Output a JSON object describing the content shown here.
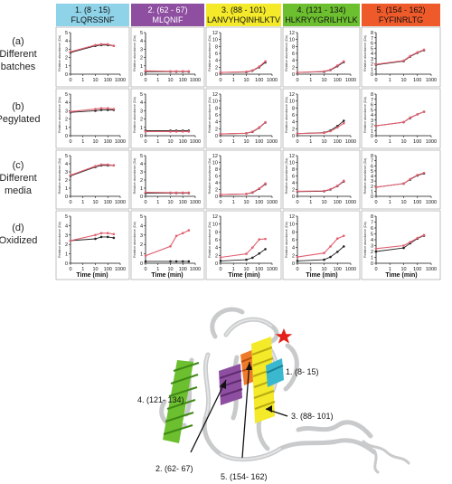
{
  "columns": [
    {
      "title": "1. (8 - 15)",
      "seq": "FLQRSSNF",
      "color": "#8fd3e8"
    },
    {
      "title": "2. (62 - 67)",
      "seq": "MLQNIF",
      "color": "#8e4fa1"
    },
    {
      "title": "3. (88 - 101)",
      "seq": "LANVYHQINHLKTV",
      "color": "#f4ea2a"
    },
    {
      "title": "4. (121 - 134)",
      "seq": "HLKRYYGRILHYLK",
      "color": "#6cbf2f"
    },
    {
      "title": "5. (154 - 162)",
      "seq": "FYFINRLTG",
      "color": "#ef5a2a"
    }
  ],
  "rows": [
    {
      "letter": "(a)",
      "lines": [
        "Different",
        "batches"
      ]
    },
    {
      "letter": "(b)",
      "lines": [
        "Pegylated"
      ]
    },
    {
      "letter": "(c)",
      "lines": [
        "Different",
        "media"
      ]
    },
    {
      "letter": "(d)",
      "lines": [
        "Oxidized"
      ]
    }
  ],
  "ylabel": "Relative abundance (Da)",
  "xlabel": "Time (min)",
  "structure_labels": [
    "1. (8- 15)",
    "2. (62- 67)",
    "3. (88- 101)",
    "4. (121- 134)",
    "5. (154- 162)"
  ],
  "series_colors": {
    "black": "#222222",
    "red": "#e06070"
  },
  "chart_data": [
    {
      "type": "line",
      "panel": "a1",
      "x_scale": "log",
      "x_ticks": [
        0,
        1,
        10,
        100,
        1000
      ],
      "ylim": [
        0,
        5
      ],
      "y_ticks": [
        0,
        1,
        2,
        3,
        4,
        5
      ],
      "x": [
        0,
        10,
        30,
        100,
        300
      ],
      "series": [
        {
          "color": "black",
          "values": [
            2.6,
            3.4,
            3.5,
            3.5,
            3.4
          ]
        },
        {
          "color": "red",
          "values": [
            2.7,
            3.5,
            3.6,
            3.6,
            3.4
          ]
        }
      ]
    },
    {
      "type": "line",
      "panel": "a2",
      "x_scale": "log",
      "x_ticks": [
        0,
        1,
        10,
        100,
        1000
      ],
      "ylim": [
        0,
        5
      ],
      "y_ticks": [
        0,
        1,
        2,
        3,
        4,
        5
      ],
      "x": [
        0,
        10,
        30,
        100,
        300
      ],
      "series": [
        {
          "color": "black",
          "values": [
            0.3,
            0.3,
            0.3,
            0.3,
            0.3
          ]
        },
        {
          "color": "red",
          "values": [
            0.4,
            0.35,
            0.35,
            0.35,
            0.35
          ]
        }
      ]
    },
    {
      "type": "line",
      "panel": "a3",
      "x_scale": "log",
      "x_ticks": [
        0,
        1,
        10,
        100,
        1000
      ],
      "ylim": [
        0,
        12
      ],
      "y_ticks": [
        0,
        2,
        4,
        6,
        8,
        10,
        12
      ],
      "x": [
        0,
        10,
        30,
        100,
        300
      ],
      "series": [
        {
          "color": "black",
          "values": [
            0.5,
            0.6,
            1.0,
            2.0,
            3.4
          ]
        },
        {
          "color": "red",
          "values": [
            0.5,
            0.7,
            1.1,
            2.2,
            3.7
          ]
        }
      ]
    },
    {
      "type": "line",
      "panel": "a4",
      "x_scale": "log",
      "x_ticks": [
        0,
        1,
        10,
        100,
        1000
      ],
      "ylim": [
        0,
        12
      ],
      "y_ticks": [
        0,
        2,
        4,
        6,
        8,
        10,
        12
      ],
      "x": [
        0,
        10,
        30,
        100,
        300
      ],
      "series": [
        {
          "color": "black",
          "values": [
            0.5,
            0.7,
            1.2,
            2.3,
            3.5
          ]
        },
        {
          "color": "red",
          "values": [
            0.5,
            0.8,
            1.3,
            2.5,
            3.7
          ]
        }
      ]
    },
    {
      "type": "line",
      "panel": "a5",
      "x_scale": "log",
      "x_ticks": [
        0,
        1,
        10,
        100,
        1000
      ],
      "ylim": [
        0,
        8
      ],
      "y_ticks": [
        0,
        1,
        2,
        3,
        4,
        5,
        6,
        7,
        8
      ],
      "x": [
        0,
        10,
        30,
        100,
        300
      ],
      "series": [
        {
          "color": "black",
          "values": [
            1.8,
            2.5,
            3.4,
            4.1,
            4.6
          ]
        },
        {
          "color": "red",
          "values": [
            1.9,
            2.6,
            3.5,
            4.2,
            4.7
          ]
        }
      ]
    },
    {
      "type": "line",
      "panel": "b1",
      "x_scale": "log",
      "x_ticks": [
        0,
        1,
        10,
        100,
        1000
      ],
      "ylim": [
        0,
        5
      ],
      "y_ticks": [
        0,
        1,
        2,
        3,
        4,
        5
      ],
      "x": [
        0,
        10,
        30,
        100,
        300
      ],
      "series": [
        {
          "color": "black",
          "values": [
            2.8,
            3.0,
            3.1,
            3.1,
            3.1
          ]
        },
        {
          "color": "red",
          "values": [
            2.9,
            3.2,
            3.3,
            3.3,
            3.2
          ]
        }
      ]
    },
    {
      "type": "line",
      "panel": "b2",
      "x_scale": "log",
      "x_ticks": [
        0,
        1,
        10,
        100,
        1000
      ],
      "ylim": [
        0,
        5
      ],
      "y_ticks": [
        0,
        1,
        2,
        3,
        4,
        5
      ],
      "x": [
        0,
        10,
        30,
        100,
        300
      ],
      "series": [
        {
          "color": "black",
          "values": [
            0.6,
            0.6,
            0.6,
            0.6,
            0.6
          ]
        },
        {
          "color": "red",
          "values": [
            0.5,
            0.5,
            0.5,
            0.5,
            0.5
          ]
        }
      ]
    },
    {
      "type": "line",
      "panel": "b3",
      "x_scale": "log",
      "x_ticks": [
        0,
        1,
        10,
        100,
        1000
      ],
      "ylim": [
        0,
        12
      ],
      "y_ticks": [
        0,
        2,
        4,
        6,
        8,
        10,
        12
      ],
      "x": [
        0,
        10,
        30,
        100,
        300
      ],
      "series": [
        {
          "color": "black",
          "values": [
            0.5,
            0.7,
            1.1,
            2.3,
            3.8
          ]
        },
        {
          "color": "red",
          "values": [
            0.5,
            0.7,
            1.2,
            2.4,
            3.9
          ]
        }
      ]
    },
    {
      "type": "line",
      "panel": "b4",
      "x_scale": "log",
      "x_ticks": [
        0,
        1,
        10,
        100,
        1000
      ],
      "ylim": [
        0,
        12
      ],
      "y_ticks": [
        0,
        2,
        4,
        6,
        8,
        10,
        12
      ],
      "x": [
        0,
        10,
        30,
        100,
        300
      ],
      "series": [
        {
          "color": "black",
          "values": [
            0.6,
            0.9,
            1.5,
            2.8,
            4.3
          ]
        },
        {
          "color": "red",
          "values": [
            0.6,
            0.8,
            1.3,
            2.4,
            3.6
          ]
        }
      ]
    },
    {
      "type": "line",
      "panel": "b5",
      "x_scale": "log",
      "x_ticks": [
        0,
        1,
        10,
        100,
        1000
      ],
      "ylim": [
        0,
        8
      ],
      "y_ticks": [
        0,
        1,
        2,
        3,
        4,
        5,
        6,
        7,
        8
      ],
      "x": [
        0,
        10,
        30,
        100,
        300
      ],
      "series": [
        {
          "color": "black",
          "values": [
            1.9,
            2.6,
            3.4,
            4.1,
            4.6
          ]
        },
        {
          "color": "red",
          "values": [
            1.9,
            2.6,
            3.5,
            4.1,
            4.6
          ]
        }
      ]
    },
    {
      "type": "line",
      "panel": "c1",
      "x_scale": "log",
      "x_ticks": [
        0,
        1,
        10,
        100,
        1000
      ],
      "ylim": [
        0,
        5
      ],
      "y_ticks": [
        0,
        1,
        2,
        3,
        4,
        5
      ],
      "x": [
        0,
        10,
        30,
        100,
        300
      ],
      "series": [
        {
          "color": "black",
          "values": [
            2.5,
            3.6,
            3.8,
            3.8,
            3.8
          ]
        },
        {
          "color": "red",
          "values": [
            2.6,
            3.7,
            3.9,
            3.9,
            3.8
          ]
        }
      ]
    },
    {
      "type": "line",
      "panel": "c2",
      "x_scale": "log",
      "x_ticks": [
        0,
        1,
        10,
        100,
        1000
      ],
      "ylim": [
        0,
        5
      ],
      "y_ticks": [
        0,
        1,
        2,
        3,
        4,
        5
      ],
      "x": [
        0,
        10,
        30,
        100,
        300
      ],
      "series": [
        {
          "color": "black",
          "values": [
            0.4,
            0.4,
            0.4,
            0.4,
            0.4
          ]
        },
        {
          "color": "red",
          "values": [
            0.5,
            0.45,
            0.45,
            0.45,
            0.45
          ]
        }
      ]
    },
    {
      "type": "line",
      "panel": "c3",
      "x_scale": "log",
      "x_ticks": [
        0,
        1,
        10,
        100,
        1000
      ],
      "ylim": [
        0,
        12
      ],
      "y_ticks": [
        0,
        2,
        4,
        6,
        8,
        10,
        12
      ],
      "x": [
        0,
        10,
        30,
        100,
        300
      ],
      "series": [
        {
          "color": "black",
          "values": [
            0.5,
            0.7,
            1.1,
            2.2,
            3.6
          ]
        },
        {
          "color": "red",
          "values": [
            0.5,
            0.7,
            1.2,
            2.3,
            3.8
          ]
        }
      ]
    },
    {
      "type": "line",
      "panel": "c4",
      "x_scale": "log",
      "x_ticks": [
        0,
        1,
        10,
        100,
        1000
      ],
      "ylim": [
        0,
        12
      ],
      "y_ticks": [
        0,
        2,
        4,
        6,
        8,
        10,
        12
      ],
      "x": [
        0,
        10,
        30,
        100,
        300
      ],
      "series": [
        {
          "color": "black",
          "values": [
            1.4,
            1.5,
            2.0,
            3.0,
            4.4
          ]
        },
        {
          "color": "red",
          "values": [
            1.5,
            1.6,
            2.1,
            3.1,
            4.6
          ]
        }
      ]
    },
    {
      "type": "line",
      "panel": "c5",
      "x_scale": "log",
      "x_ticks": [
        0,
        1,
        10,
        100,
        1000
      ],
      "ylim": [
        0,
        8
      ],
      "y_ticks": [
        0,
        1,
        2,
        3,
        4,
        5,
        6,
        7,
        8
      ],
      "x": [
        0,
        10,
        30,
        100,
        300
      ],
      "series": [
        {
          "color": "black",
          "values": [
            1.8,
            2.5,
            3.3,
            4.1,
            4.5
          ]
        },
        {
          "color": "red",
          "values": [
            1.8,
            2.5,
            3.4,
            4.2,
            4.6
          ]
        }
      ]
    },
    {
      "type": "line",
      "panel": "d1",
      "x_scale": "log",
      "x_ticks": [
        0,
        1,
        10,
        100,
        1000
      ],
      "ylim": [
        0,
        5
      ],
      "y_ticks": [
        0,
        1,
        2,
        3,
        4,
        5
      ],
      "x": [
        0,
        10,
        30,
        100,
        300
      ],
      "series": [
        {
          "color": "black",
          "values": [
            2.4,
            2.6,
            2.8,
            2.8,
            2.7
          ]
        },
        {
          "color": "red",
          "values": [
            2.4,
            3.0,
            3.2,
            3.2,
            3.1
          ]
        }
      ]
    },
    {
      "type": "line",
      "panel": "d2",
      "x_scale": "log",
      "x_ticks": [
        0,
        1,
        10,
        100,
        1000
      ],
      "ylim": [
        0,
        5
      ],
      "y_ticks": [
        0,
        1,
        2,
        3,
        4,
        5
      ],
      "x": [
        0,
        10,
        30,
        100,
        300
      ],
      "series": [
        {
          "color": "black",
          "values": [
            0.2,
            0.2,
            0.2,
            0.2,
            0.2
          ]
        },
        {
          "color": "red",
          "values": [
            0.8,
            1.8,
            2.9,
            3.2,
            3.5
          ]
        }
      ]
    },
    {
      "type": "line",
      "panel": "d3",
      "x_scale": "log",
      "x_ticks": [
        0,
        1,
        10,
        100,
        1000
      ],
      "ylim": [
        0,
        12
      ],
      "y_ticks": [
        0,
        2,
        4,
        6,
        8,
        10,
        12
      ],
      "x": [
        0,
        10,
        30,
        100,
        300
      ],
      "series": [
        {
          "color": "black",
          "values": [
            0.6,
            0.9,
            1.4,
            2.5,
            3.6
          ]
        },
        {
          "color": "red",
          "values": [
            1.5,
            2.4,
            4.0,
            6.1,
            6.2
          ]
        }
      ]
    },
    {
      "type": "line",
      "panel": "d4",
      "x_scale": "log",
      "x_ticks": [
        0,
        1,
        10,
        100,
        1000
      ],
      "ylim": [
        0,
        12
      ],
      "y_ticks": [
        0,
        2,
        4,
        6,
        8,
        10,
        12
      ],
      "x": [
        0,
        10,
        30,
        100,
        300
      ],
      "series": [
        {
          "color": "black",
          "values": [
            0.6,
            0.9,
            1.6,
            2.9,
            4.3
          ]
        },
        {
          "color": "red",
          "values": [
            1.6,
            2.6,
            4.3,
            6.3,
            7.0
          ]
        }
      ]
    },
    {
      "type": "line",
      "panel": "d5",
      "x_scale": "log",
      "x_ticks": [
        0,
        1,
        10,
        100,
        1000
      ],
      "ylim": [
        0,
        8
      ],
      "y_ticks": [
        0,
        1,
        2,
        3,
        4,
        5,
        6,
        7,
        8
      ],
      "x": [
        0,
        10,
        30,
        100,
        300
      ],
      "series": [
        {
          "color": "black",
          "values": [
            2.0,
            2.6,
            3.4,
            4.2,
            4.7
          ]
        },
        {
          "color": "red",
          "values": [
            2.5,
            3.0,
            3.6,
            4.3,
            4.8
          ]
        }
      ]
    }
  ]
}
